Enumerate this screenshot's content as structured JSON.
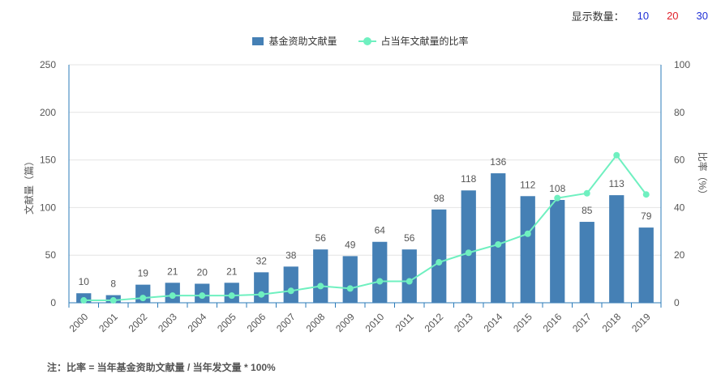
{
  "display_count": {
    "label": "显示数量：",
    "options": [
      {
        "text": "10",
        "color": "#1f2fd6"
      },
      {
        "text": "20",
        "color": "#e0202a"
      },
      {
        "text": "30",
        "color": "#1f2fd6"
      }
    ]
  },
  "note": "注：比率 = 当年基金资助文献量 / 当年发文量 * 100%",
  "chart_data": {
    "type": "bar",
    "categories": [
      "2000",
      "2001",
      "2002",
      "2003",
      "2004",
      "2005",
      "2006",
      "2007",
      "2008",
      "2009",
      "2010",
      "2011",
      "2012",
      "2013",
      "2014",
      "2015",
      "2016",
      "2017",
      "2018",
      "2019"
    ],
    "series": [
      {
        "name": "基金资助文献量",
        "type": "bar",
        "axis": "left",
        "color": "#4580b5",
        "values": [
          10,
          8,
          19,
          21,
          20,
          21,
          32,
          38,
          56,
          49,
          64,
          56,
          98,
          118,
          136,
          112,
          108,
          85,
          113,
          79
        ]
      },
      {
        "name": "占当年文献量的比率",
        "type": "line",
        "axis": "right",
        "color": "#6ff0c0",
        "values": [
          1,
          1,
          2,
          3,
          3,
          3,
          3.5,
          5,
          7,
          6,
          9,
          9,
          17,
          21,
          24.5,
          29,
          44,
          46,
          62,
          45.5
        ]
      }
    ],
    "y_left": {
      "label": "文献量（篇）",
      "lim": [
        0,
        250
      ],
      "ticks": [
        0,
        50,
        100,
        150,
        200,
        250
      ]
    },
    "y_right": {
      "label": "比率（%）",
      "lim": [
        0,
        100
      ],
      "ticks": [
        0,
        20,
        40,
        60,
        80,
        100
      ]
    },
    "grid": true,
    "legend_position": "top"
  }
}
